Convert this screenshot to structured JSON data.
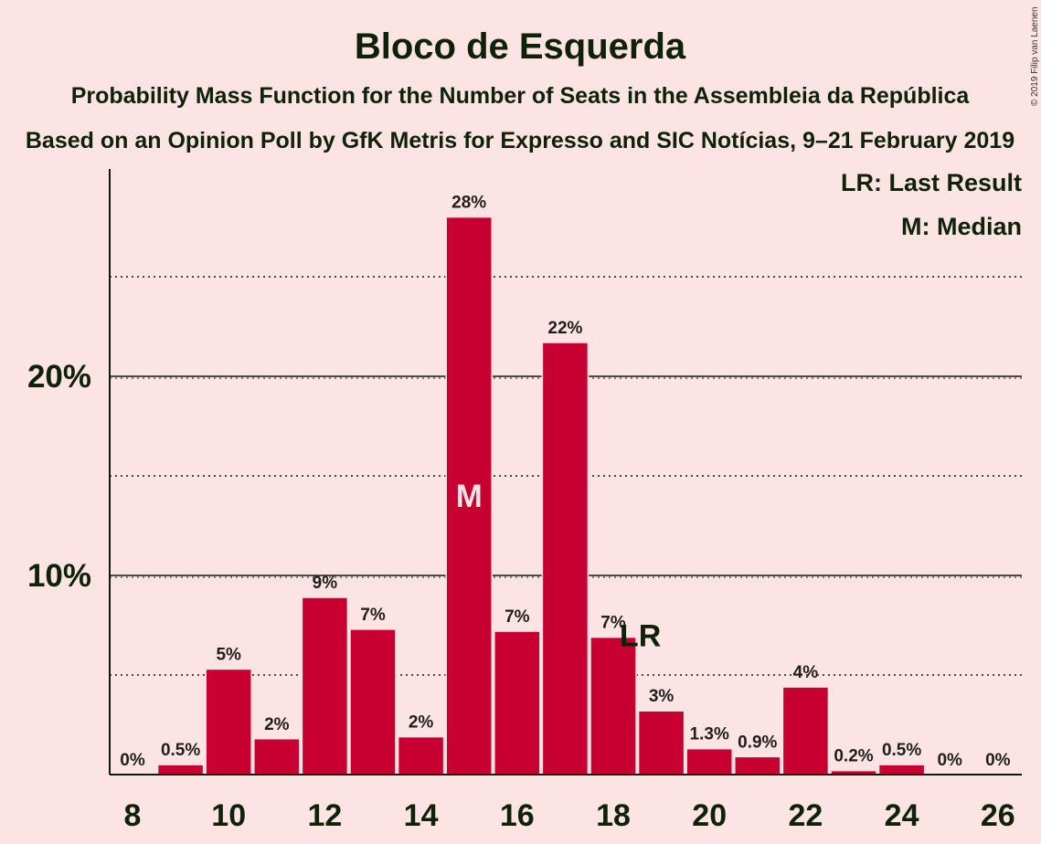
{
  "header": {
    "title": "Bloco de Esquerda",
    "subtitle": "Probability Mass Function for the Number of Seats in the Assembleia da República",
    "source": "Based on an Opinion Poll by GfK Metris for Expresso and SIC Notícias, 9–21 February 2019",
    "copyright": "© 2019 Filip van Laenen"
  },
  "legend": {
    "last_result": "LR: Last Result",
    "median": "M: Median"
  },
  "colors": {
    "background": "#FDE4E4",
    "bar": "#C80032",
    "text": "#0E2208"
  },
  "chart_data": {
    "type": "bar",
    "title": "Bloco de Esquerda",
    "xlabel": "",
    "ylabel": "",
    "categories": [
      8,
      9,
      10,
      11,
      12,
      13,
      14,
      15,
      16,
      17,
      18,
      19,
      20,
      21,
      22,
      23,
      24,
      25,
      26
    ],
    "values": [
      0,
      0.5,
      5.3,
      1.8,
      8.9,
      7.3,
      1.9,
      28.0,
      7.2,
      21.7,
      6.9,
      3.2,
      1.3,
      0.9,
      4.4,
      0.2,
      0.5,
      0,
      0
    ],
    "labels": [
      "0%",
      "0.5%",
      "5%",
      "2%",
      "9%",
      "7%",
      "2%",
      "28%",
      "7%",
      "22%",
      "7%",
      "3%",
      "1.3%",
      "0.9%",
      "4%",
      "0.2%",
      "0.5%",
      "0%",
      "0%"
    ],
    "ylim": [
      0,
      30
    ],
    "y_major_ticks": [
      10,
      20
    ],
    "y_tick_labels": [
      "10%",
      "20%"
    ],
    "y_minor_gridlines": [
      5,
      15,
      25
    ],
    "x_tick_labels": [
      8,
      10,
      12,
      14,
      16,
      18,
      20,
      22,
      24,
      26
    ],
    "median": {
      "seats": 15,
      "mark": "M"
    },
    "last_result": {
      "seats": 19,
      "mark": "LR"
    },
    "legend_position": "top-right",
    "grid": true
  }
}
